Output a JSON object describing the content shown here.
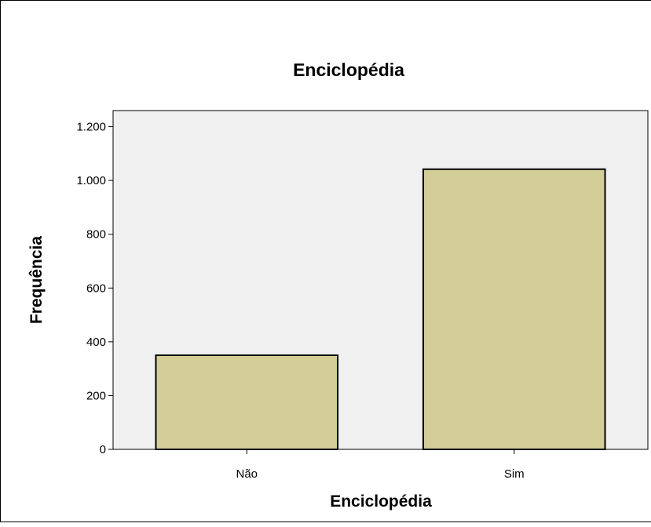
{
  "chart_data": {
    "type": "bar",
    "title": "Enciclopédia",
    "xlabel": "Enciclopédia",
    "ylabel": "Frequência",
    "categories": [
      "Não",
      "Sim"
    ],
    "values": [
      350,
      1042
    ],
    "ylim": [
      0,
      1260
    ],
    "yticks": [
      0,
      200,
      400,
      600,
      800,
      1000,
      1200
    ],
    "ytick_labels": [
      "0",
      "200",
      "400",
      "600",
      "800",
      "1.000",
      "1.200"
    ],
    "grid": false,
    "legend": "none",
    "colors": {
      "bar_fill": "#d3cd97",
      "bar_stroke": "#000000",
      "plot_background": "#f0f0f0"
    }
  }
}
